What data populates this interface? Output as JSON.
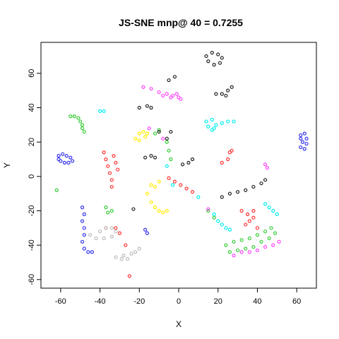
{
  "chart_data": {
    "type": "scatter",
    "title": "JS-SNE mnp@ 40 = 0.7255",
    "xlabel": "X",
    "ylabel": "Y",
    "xlim": [
      -70,
      70
    ],
    "ylim": [
      -65,
      78
    ],
    "xticks": [
      -60,
      -40,
      -20,
      0,
      20,
      40,
      60
    ],
    "yticks": [
      -60,
      -40,
      -20,
      0,
      20,
      40,
      60
    ],
    "grid": false,
    "legend": "none",
    "marker": "open-circle",
    "series": [
      {
        "color": "#3333ee",
        "points": [
          [
            -61,
            12
          ],
          [
            -59,
            13
          ],
          [
            -57,
            12
          ],
          [
            -55,
            11
          ],
          [
            -54,
            9
          ],
          [
            -56,
            8
          ],
          [
            -58,
            8
          ],
          [
            -60,
            9
          ],
          [
            -61,
            10
          ],
          [
            62,
            24
          ],
          [
            64,
            25
          ],
          [
            65,
            22
          ],
          [
            65,
            19
          ],
          [
            64,
            16
          ],
          [
            62,
            17
          ],
          [
            63,
            20
          ],
          [
            62,
            22
          ],
          [
            -49,
            -18
          ],
          [
            -48,
            -22
          ],
          [
            -49,
            -26
          ],
          [
            -48,
            -30
          ],
          [
            -48,
            -34
          ],
          [
            -49,
            -38
          ],
          [
            -48,
            -42
          ],
          [
            -46,
            -44
          ],
          [
            -44,
            -44
          ],
          [
            -17,
            -31
          ],
          [
            -16,
            -33
          ]
        ]
      },
      {
        "color": "#33cc33",
        "points": [
          [
            -55,
            35
          ],
          [
            -53,
            35
          ],
          [
            -51,
            34
          ],
          [
            -50,
            32
          ],
          [
            -49,
            30
          ],
          [
            -49,
            28
          ],
          [
            -48,
            26
          ],
          [
            -37,
            -18
          ],
          [
            -36,
            -21
          ],
          [
            -34,
            -20
          ],
          [
            -10,
            27
          ],
          [
            -12,
            25
          ],
          [
            -6,
            20
          ],
          [
            -5,
            15
          ],
          [
            -4,
            10
          ],
          [
            -62,
            -8
          ],
          [
            15,
            -20
          ],
          [
            18,
            -24
          ],
          [
            24,
            -40
          ],
          [
            28,
            -38
          ],
          [
            32,
            -37
          ],
          [
            36,
            -36
          ],
          [
            40,
            -34
          ],
          [
            44,
            -32
          ],
          [
            47,
            -30
          ],
          [
            26,
            -44
          ],
          [
            30,
            -43
          ],
          [
            34,
            -42
          ],
          [
            38,
            -41
          ],
          [
            42,
            -38
          ],
          [
            46,
            -36
          ],
          [
            49,
            -33
          ]
        ]
      },
      {
        "color": "#ff3333",
        "points": [
          [
            -38,
            14
          ],
          [
            -37,
            10
          ],
          [
            -36,
            6
          ],
          [
            -35,
            2
          ],
          [
            -34,
            -2
          ],
          [
            -34,
            -6
          ],
          [
            -33,
            12
          ],
          [
            -32,
            8
          ],
          [
            -31,
            4
          ],
          [
            -5,
            -1
          ],
          [
            -2,
            -3
          ],
          [
            1,
            -5
          ],
          [
            4,
            -7
          ],
          [
            7,
            -9
          ],
          [
            22,
            8
          ],
          [
            25,
            10
          ],
          [
            26,
            14
          ],
          [
            27,
            15
          ],
          [
            32,
            -20
          ],
          [
            35,
            -22
          ],
          [
            38,
            -20
          ],
          [
            36,
            -26
          ],
          [
            40,
            -30
          ],
          [
            34,
            -28
          ],
          [
            38,
            -24
          ],
          [
            -37,
            -30
          ],
          [
            -30,
            -33
          ],
          [
            -27,
            -40
          ],
          [
            -25,
            -58
          ],
          [
            -32,
            -30
          ]
        ]
      },
      {
        "color": "#ffee00",
        "points": [
          [
            -22,
            22
          ],
          [
            -20,
            25
          ],
          [
            -18,
            26
          ],
          [
            -16,
            25
          ],
          [
            -17,
            23
          ],
          [
            -20,
            21
          ],
          [
            -14,
            -5
          ],
          [
            -16,
            -10
          ],
          [
            -14,
            -15
          ],
          [
            -12,
            -18
          ],
          [
            -10,
            -20
          ],
          [
            -8,
            -21
          ],
          [
            -6,
            -20
          ],
          [
            -10,
            -3
          ],
          [
            -12,
            -6
          ]
        ]
      },
      {
        "color": "#ff44ff",
        "points": [
          [
            -18,
            52
          ],
          [
            -14,
            51
          ],
          [
            -10,
            49
          ],
          [
            -6,
            48
          ],
          [
            -3,
            47
          ],
          [
            0,
            46
          ],
          [
            1,
            45
          ],
          [
            -8,
            47
          ],
          [
            -4,
            46
          ],
          [
            -1,
            48
          ],
          [
            -8,
            22
          ],
          [
            -15,
            28
          ],
          [
            44,
            7
          ],
          [
            45,
            5
          ],
          [
            15,
            -19
          ],
          [
            28,
            -46
          ],
          [
            32,
            -44
          ],
          [
            36,
            -44
          ],
          [
            40,
            -43
          ],
          [
            44,
            -41
          ],
          [
            48,
            -40
          ],
          [
            51,
            -38
          ]
        ]
      },
      {
        "color": "#00eeee",
        "points": [
          [
            14,
            32
          ],
          [
            17,
            33
          ],
          [
            19,
            30
          ],
          [
            17,
            27
          ],
          [
            15,
            29
          ],
          [
            18,
            28
          ],
          [
            22,
            31
          ],
          [
            25,
            32
          ],
          [
            28,
            32
          ],
          [
            -40,
            38
          ],
          [
            -38,
            38
          ],
          [
            -6,
            6
          ],
          [
            -3,
            -5
          ],
          [
            10,
            -12
          ],
          [
            18,
            -22
          ],
          [
            20,
            -26
          ],
          [
            22,
            -28
          ],
          [
            24,
            -30
          ],
          [
            26,
            -31
          ],
          [
            44,
            -16
          ],
          [
            46,
            -18
          ],
          [
            48,
            -20
          ],
          [
            50,
            -22
          ]
        ]
      },
      {
        "color": "#222222",
        "points": [
          [
            14,
            70
          ],
          [
            17,
            72
          ],
          [
            20,
            71
          ],
          [
            22,
            69
          ],
          [
            21,
            66
          ],
          [
            18,
            65
          ],
          [
            15,
            67
          ],
          [
            19,
            48
          ],
          [
            22,
            48
          ],
          [
            25,
            50
          ],
          [
            27,
            52
          ],
          [
            24,
            47
          ],
          [
            -20,
            40
          ],
          [
            -16,
            41
          ],
          [
            -14,
            40
          ],
          [
            -5,
            56
          ],
          [
            -2,
            58
          ],
          [
            -10,
            26
          ],
          [
            -6,
            22
          ],
          [
            -4,
            26
          ],
          [
            -17,
            11
          ],
          [
            -14,
            12
          ],
          [
            -12,
            11
          ],
          [
            2,
            7
          ],
          [
            5,
            8
          ],
          [
            7,
            10
          ],
          [
            22,
            -12
          ],
          [
            26,
            -10
          ],
          [
            30,
            -9
          ],
          [
            34,
            -8
          ],
          [
            38,
            -6
          ],
          [
            42,
            -4
          ],
          [
            44,
            -2
          ],
          [
            -23,
            -19
          ]
        ]
      },
      {
        "color": "#bbbbbb",
        "points": [
          [
            -40,
            -32
          ],
          [
            -37,
            -30
          ],
          [
            -34,
            -30
          ],
          [
            -32,
            -32
          ],
          [
            -34,
            -35
          ],
          [
            -38,
            -36
          ],
          [
            -42,
            -36
          ],
          [
            -45,
            -34
          ],
          [
            -32,
            -47
          ],
          [
            -28,
            -46
          ],
          [
            -24,
            -45
          ],
          [
            -22,
            -44
          ],
          [
            -20,
            -42
          ],
          [
            -26,
            -48
          ],
          [
            -29,
            -48
          ]
        ]
      }
    ]
  }
}
